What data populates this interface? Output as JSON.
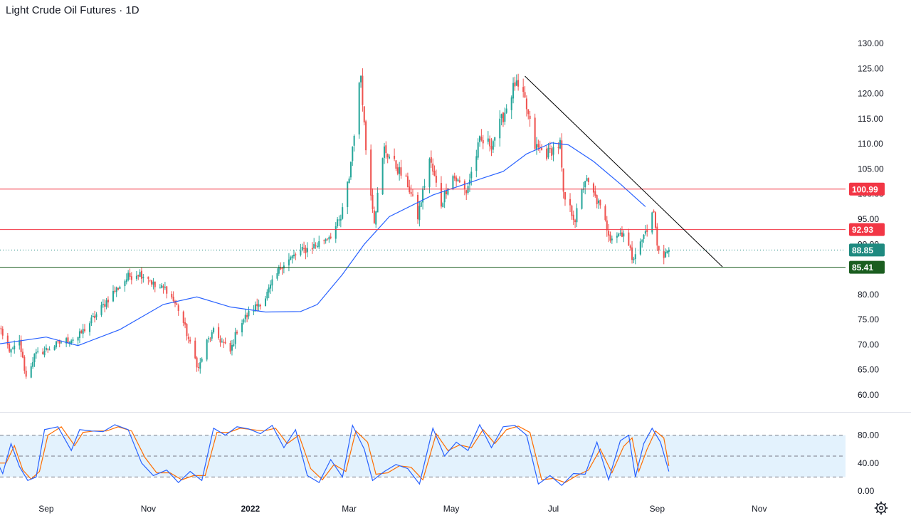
{
  "header": {
    "title": "Light Crude Oil Futures · 1D"
  },
  "icons": {
    "settings": "gear-icon"
  },
  "colors": {
    "bullish": "#26a69a",
    "bearish": "#ef5350",
    "moving_average": "#2962ff",
    "resistance": "#f23645",
    "support": "#1b5e20",
    "current_price": "#1f8a80",
    "trendline": "#000000",
    "stoch_k": "#2962ff",
    "stoch_d": "#ff6d00",
    "stoch_band": "#e3f2fd"
  },
  "chart_data": [
    {
      "type": "candlestick",
      "title": "Light Crude Oil Futures · 1D",
      "ylim": [
        57,
        133
      ],
      "xlim": [
        "2021-08-01",
        "2022-11-30"
      ],
      "y_ticks": [
        "60.00",
        "65.00",
        "70.00",
        "75.00",
        "80.00",
        "85.00",
        "90.00",
        "95.00",
        "100.00",
        "105.00",
        "110.00",
        "115.00",
        "120.00",
        "125.00",
        "130.00"
      ],
      "x_ticks": [
        {
          "label": "Sep",
          "date": "2021-09-01"
        },
        {
          "label": "Nov",
          "date": "2021-11-01"
        },
        {
          "label": "2022",
          "date": "2022-01-01",
          "bold": true
        },
        {
          "label": "Mar",
          "date": "2022-03-01"
        },
        {
          "label": "May",
          "date": "2022-05-01"
        },
        {
          "label": "Jul",
          "date": "2022-07-01"
        },
        {
          "label": "Sep",
          "date": "2022-09-01"
        },
        {
          "label": "Nov",
          "date": "2022-11-01"
        }
      ],
      "price_path": [
        [
          "2021-08-01",
          75.5
        ],
        [
          "2021-08-06",
          71.5
        ],
        [
          "2021-08-11",
          68.5
        ],
        [
          "2021-08-16",
          70.5
        ],
        [
          "2021-08-20",
          63.5
        ],
        [
          "2021-08-25",
          67.8
        ],
        [
          "2021-09-01",
          69.0
        ],
        [
          "2021-09-10",
          70.5
        ],
        [
          "2021-09-20",
          71.5
        ],
        [
          "2021-10-01",
          76.0
        ],
        [
          "2021-10-10",
          80.0
        ],
        [
          "2021-10-20",
          83.5
        ],
        [
          "2021-10-26",
          84.3
        ],
        [
          "2021-11-01",
          83.5
        ],
        [
          "2021-11-05",
          81.5
        ],
        [
          "2021-11-12",
          81.0
        ],
        [
          "2021-11-20",
          76.5
        ],
        [
          "2021-11-26",
          70.0
        ],
        [
          "2021-12-01",
          65.2
        ],
        [
          "2021-12-06",
          70.5
        ],
        [
          "2021-12-10",
          72.5
        ],
        [
          "2021-12-20",
          68.5
        ],
        [
          "2021-12-25",
          74.0
        ],
        [
          "2022-01-01",
          76.5
        ],
        [
          "2022-01-10",
          79.5
        ],
        [
          "2022-01-20",
          86.0
        ],
        [
          "2022-01-31",
          88.5
        ],
        [
          "2022-02-10",
          90.0
        ],
        [
          "2022-02-18",
          92.0
        ],
        [
          "2022-02-24",
          95.0
        ],
        [
          "2022-03-01",
          103.5
        ],
        [
          "2022-03-05",
          115.5
        ],
        [
          "2022-03-08",
          124.0
        ],
        [
          "2022-03-11",
          109.0
        ],
        [
          "2022-03-16",
          95.0
        ],
        [
          "2022-03-22",
          109.0
        ],
        [
          "2022-03-28",
          106.0
        ],
        [
          "2022-04-05",
          102.0
        ],
        [
          "2022-04-11",
          95.5
        ],
        [
          "2022-04-18",
          107.0
        ],
        [
          "2022-04-25",
          98.0
        ],
        [
          "2022-05-01",
          104.0
        ],
        [
          "2022-05-10",
          100.5
        ],
        [
          "2022-05-18",
          110.5
        ],
        [
          "2022-05-25",
          110.0
        ],
        [
          "2022-06-01",
          115.5
        ],
        [
          "2022-06-08",
          122.0
        ],
        [
          "2022-06-14",
          118.5
        ],
        [
          "2022-06-20",
          109.5
        ],
        [
          "2022-06-27",
          108.0
        ],
        [
          "2022-07-05",
          110.0
        ],
        [
          "2022-07-07",
          99.5
        ],
        [
          "2022-07-14",
          95.0
        ],
        [
          "2022-07-20",
          103.0
        ],
        [
          "2022-07-28",
          98.0
        ],
        [
          "2022-08-04",
          91.5
        ],
        [
          "2022-08-12",
          92.5
        ],
        [
          "2022-08-17",
          87.5
        ],
        [
          "2022-08-22",
          90.0
        ],
        [
          "2022-08-30",
          96.5
        ],
        [
          "2022-09-01",
          89.5
        ],
        [
          "2022-09-05",
          88.0
        ],
        [
          "2022-09-08",
          88.85
        ]
      ],
      "moving_average": [
        [
          "2021-08-01",
          70.0
        ],
        [
          "2021-09-01",
          71.5
        ],
        [
          "2021-09-20",
          69.8
        ],
        [
          "2021-10-15",
          73.0
        ],
        [
          "2021-11-10",
          78.0
        ],
        [
          "2021-11-30",
          79.5
        ],
        [
          "2021-12-20",
          77.5
        ],
        [
          "2022-01-10",
          76.5
        ],
        [
          "2022-01-31",
          76.6
        ],
        [
          "2022-02-10",
          78.0
        ],
        [
          "2022-02-25",
          84.0
        ],
        [
          "2022-03-10",
          90.0
        ],
        [
          "2022-03-25",
          95.5
        ],
        [
          "2022-04-20",
          99.8
        ],
        [
          "2022-05-20",
          103.2
        ],
        [
          "2022-06-01",
          104.5
        ],
        [
          "2022-06-15",
          108.0
        ],
        [
          "2022-06-30",
          110.2
        ],
        [
          "2022-07-10",
          109.8
        ],
        [
          "2022-07-25",
          106.5
        ],
        [
          "2022-08-10",
          102.0
        ],
        [
          "2022-08-25",
          97.5
        ]
      ],
      "levels": [
        {
          "name": "resistance-100-99",
          "value": 100.99,
          "label": "100.99",
          "style": "solid"
        },
        {
          "name": "resistance-92-93",
          "value": 92.93,
          "label": "92.93",
          "style": "solid"
        },
        {
          "name": "current-price",
          "value": 88.85,
          "label": "88.85",
          "style": "dotted"
        },
        {
          "name": "support-85-41",
          "value": 85.41,
          "label": "85.41",
          "style": "solid"
        }
      ],
      "trendline": {
        "from": [
          "2022-06-14",
          123.5
        ],
        "to": [
          "2022-10-10",
          85.5
        ]
      }
    },
    {
      "type": "line",
      "name": "stochastic",
      "ylim": [
        0,
        100
      ],
      "y_ticks": [
        "0.00",
        "40.00",
        "80.00"
      ],
      "bands": [
        20,
        50,
        80
      ],
      "k_line": [
        [
          "2021-08-01",
          50
        ],
        [
          "2021-08-06",
          25
        ],
        [
          "2021-08-11",
          68
        ],
        [
          "2021-08-16",
          35
        ],
        [
          "2021-08-21",
          15
        ],
        [
          "2021-08-26",
          20
        ],
        [
          "2021-08-31",
          88
        ],
        [
          "2021-09-08",
          92
        ],
        [
          "2021-09-16",
          58
        ],
        [
          "2021-09-21",
          88
        ],
        [
          "2021-09-28",
          86
        ],
        [
          "2021-10-05",
          85
        ],
        [
          "2021-10-12",
          95
        ],
        [
          "2021-10-20",
          88
        ],
        [
          "2021-10-28",
          40
        ],
        [
          "2021-11-04",
          22
        ],
        [
          "2021-11-12",
          30
        ],
        [
          "2021-11-19",
          12
        ],
        [
          "2021-11-26",
          28
        ],
        [
          "2021-12-03",
          15
        ],
        [
          "2021-12-10",
          90
        ],
        [
          "2021-12-17",
          80
        ],
        [
          "2021-12-24",
          92
        ],
        [
          "2021-12-31",
          89
        ],
        [
          "2022-01-07",
          82
        ],
        [
          "2022-01-14",
          94
        ],
        [
          "2022-01-21",
          62
        ],
        [
          "2022-01-28",
          88
        ],
        [
          "2022-02-04",
          22
        ],
        [
          "2022-02-11",
          12
        ],
        [
          "2022-02-18",
          45
        ],
        [
          "2022-02-25",
          20
        ],
        [
          "2022-03-03",
          94
        ],
        [
          "2022-03-10",
          60
        ],
        [
          "2022-03-15",
          15
        ],
        [
          "2022-03-22",
          28
        ],
        [
          "2022-03-29",
          38
        ],
        [
          "2022-04-05",
          32
        ],
        [
          "2022-04-12",
          10
        ],
        [
          "2022-04-20",
          90
        ],
        [
          "2022-04-27",
          50
        ],
        [
          "2022-05-04",
          70
        ],
        [
          "2022-05-11",
          58
        ],
        [
          "2022-05-18",
          95
        ],
        [
          "2022-05-25",
          62
        ],
        [
          "2022-06-01",
          92
        ],
        [
          "2022-06-08",
          94
        ],
        [
          "2022-06-15",
          80
        ],
        [
          "2022-06-22",
          10
        ],
        [
          "2022-06-29",
          22
        ],
        [
          "2022-07-06",
          8
        ],
        [
          "2022-07-13",
          25
        ],
        [
          "2022-07-20",
          24
        ],
        [
          "2022-07-27",
          70
        ],
        [
          "2022-08-03",
          16
        ],
        [
          "2022-08-10",
          72
        ],
        [
          "2022-08-15",
          80
        ],
        [
          "2022-08-19",
          20
        ],
        [
          "2022-08-24",
          68
        ],
        [
          "2022-08-29",
          90
        ],
        [
          "2022-09-03",
          70
        ],
        [
          "2022-09-08",
          28
        ]
      ],
      "d_line": [
        [
          "2021-08-01",
          40
        ],
        [
          "2021-08-08",
          40
        ],
        [
          "2021-08-13",
          65
        ],
        [
          "2021-08-18",
          30
        ],
        [
          "2021-08-23",
          17
        ],
        [
          "2021-08-28",
          28
        ],
        [
          "2021-09-02",
          80
        ],
        [
          "2021-09-10",
          92
        ],
        [
          "2021-09-18",
          65
        ],
        [
          "2021-09-23",
          84
        ],
        [
          "2021-09-30",
          86
        ],
        [
          "2021-10-07",
          86
        ],
        [
          "2021-10-14",
          92
        ],
        [
          "2021-10-22",
          86
        ],
        [
          "2021-10-30",
          48
        ],
        [
          "2021-11-06",
          26
        ],
        [
          "2021-11-14",
          26
        ],
        [
          "2021-11-21",
          16
        ],
        [
          "2021-11-28",
          22
        ],
        [
          "2021-12-05",
          22
        ],
        [
          "2021-12-12",
          84
        ],
        [
          "2021-12-19",
          84
        ],
        [
          "2021-12-26",
          90
        ],
        [
          "2022-01-02",
          88
        ],
        [
          "2022-01-09",
          86
        ],
        [
          "2022-01-16",
          90
        ],
        [
          "2022-01-23",
          68
        ],
        [
          "2022-01-30",
          80
        ],
        [
          "2022-02-06",
          32
        ],
        [
          "2022-02-13",
          16
        ],
        [
          "2022-02-20",
          38
        ],
        [
          "2022-02-27",
          28
        ],
        [
          "2022-03-05",
          86
        ],
        [
          "2022-03-12",
          70
        ],
        [
          "2022-03-17",
          24
        ],
        [
          "2022-03-24",
          26
        ],
        [
          "2022-03-31",
          36
        ],
        [
          "2022-04-07",
          34
        ],
        [
          "2022-04-14",
          16
        ],
        [
          "2022-04-22",
          82
        ],
        [
          "2022-04-29",
          58
        ],
        [
          "2022-05-06",
          66
        ],
        [
          "2022-05-13",
          62
        ],
        [
          "2022-05-20",
          88
        ],
        [
          "2022-05-27",
          68
        ],
        [
          "2022-06-03",
          88
        ],
        [
          "2022-06-10",
          93
        ],
        [
          "2022-06-17",
          84
        ],
        [
          "2022-06-24",
          16
        ],
        [
          "2022-07-01",
          18
        ],
        [
          "2022-07-08",
          12
        ],
        [
          "2022-07-15",
          22
        ],
        [
          "2022-07-22",
          30
        ],
        [
          "2022-07-29",
          60
        ],
        [
          "2022-08-05",
          26
        ],
        [
          "2022-08-12",
          64
        ],
        [
          "2022-08-17",
          76
        ],
        [
          "2022-08-21",
          28
        ],
        [
          "2022-08-26",
          60
        ],
        [
          "2022-08-31",
          86
        ],
        [
          "2022-09-05",
          76
        ],
        [
          "2022-09-08",
          36
        ]
      ]
    }
  ]
}
